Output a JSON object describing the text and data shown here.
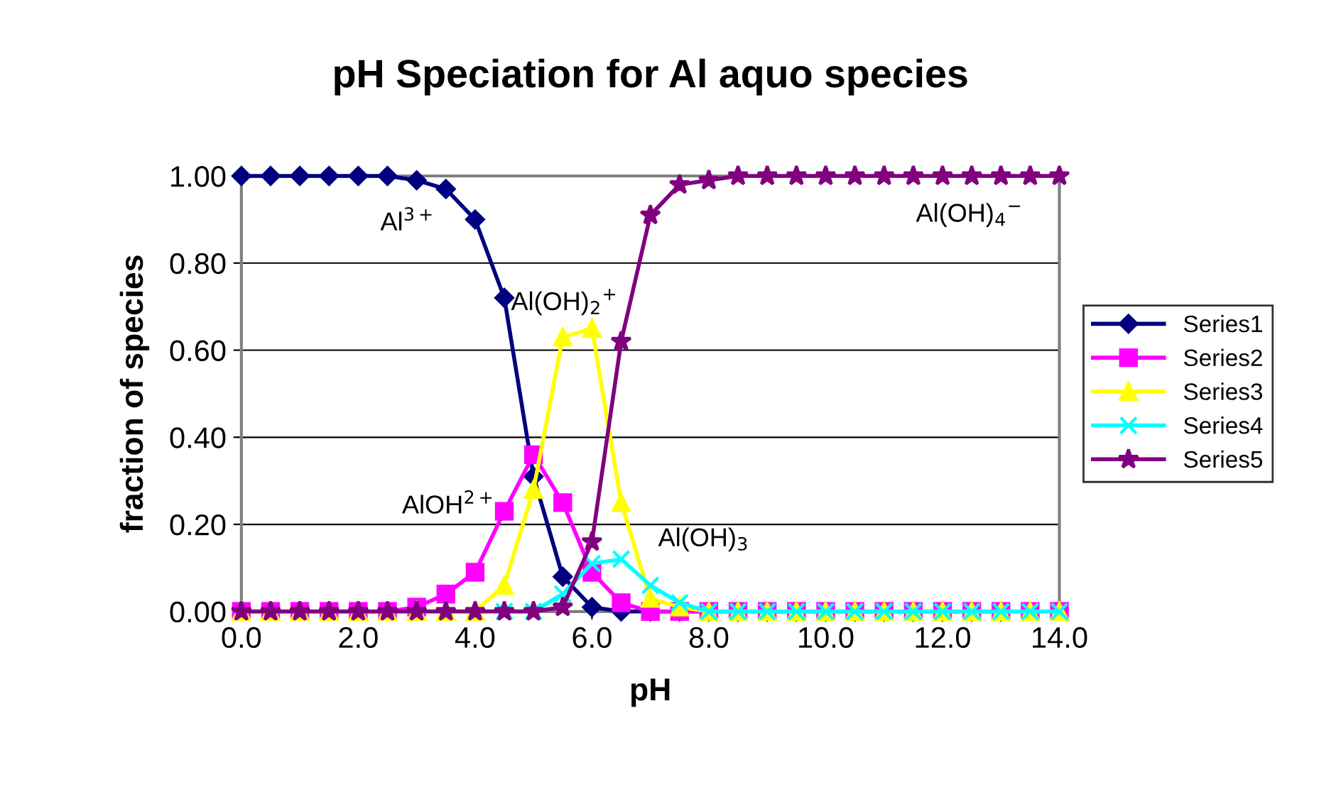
{
  "chart_data": {
    "type": "line",
    "title": "pH Speciation for Al aquo species",
    "xlabel": "pH",
    "ylabel": "fraction of species",
    "x": [
      0.0,
      0.5,
      1.0,
      1.5,
      2.0,
      2.5,
      3.0,
      3.5,
      4.0,
      4.5,
      5.0,
      5.5,
      6.0,
      6.5,
      7.0,
      7.5,
      8.0,
      8.5,
      9.0,
      9.5,
      10.0,
      10.5,
      11.0,
      11.5,
      12.0,
      12.5,
      13.0,
      13.5,
      14.0
    ],
    "series": [
      {
        "name": "Series1",
        "color": "#000080",
        "marker": "diamond",
        "values": [
          1.0,
          1.0,
          1.0,
          1.0,
          1.0,
          1.0,
          0.99,
          0.97,
          0.9,
          0.72,
          0.31,
          0.08,
          0.01,
          0,
          0,
          0,
          0,
          0,
          0,
          0,
          0,
          0,
          0,
          0,
          0,
          0,
          0,
          null,
          null
        ]
      },
      {
        "name": "Series2",
        "color": "#ff00ff",
        "marker": "square",
        "values": [
          0,
          0,
          0,
          0,
          0,
          0,
          0.01,
          0.04,
          0.09,
          0.23,
          0.36,
          0.25,
          0.09,
          0.02,
          0,
          0,
          0,
          0,
          0,
          0,
          0,
          0,
          0,
          0,
          0,
          0,
          0,
          0,
          0
        ]
      },
      {
        "name": "Series3",
        "color": "#ffff00",
        "marker": "triangle",
        "values": [
          0,
          0,
          0,
          0,
          0,
          0,
          0,
          0,
          0,
          0.06,
          0.28,
          0.63,
          0.65,
          0.25,
          0.03,
          0.01,
          0,
          0,
          0,
          0,
          0,
          0,
          0,
          0,
          0,
          0,
          0,
          0,
          0
        ]
      },
      {
        "name": "Series4",
        "color": "#00ffff",
        "marker": "cross",
        "values": [
          null,
          null,
          null,
          null,
          null,
          null,
          null,
          null,
          null,
          0,
          0,
          0.04,
          0.11,
          0.12,
          0.06,
          0.02,
          0,
          0,
          0,
          0,
          0,
          0,
          0,
          0,
          0,
          0,
          0,
          0,
          0
        ]
      },
      {
        "name": "Series5",
        "color": "#800080",
        "marker": "star",
        "values": [
          0,
          0,
          0,
          0,
          0,
          0,
          0,
          0,
          0,
          0,
          0,
          0.01,
          0.16,
          0.62,
          0.91,
          0.98,
          0.99,
          1.0,
          1.0,
          1.0,
          1.0,
          1.0,
          1.0,
          1.0,
          1.0,
          1.0,
          1.0,
          1.0,
          1.0
        ]
      }
    ],
    "xlim": [
      0,
      14
    ],
    "xticks": [
      {
        "value": 0,
        "label": "0.0"
      },
      {
        "value": 2,
        "label": "2.0"
      },
      {
        "value": 4,
        "label": "4.0"
      },
      {
        "value": 6,
        "label": "6.0"
      },
      {
        "value": 8,
        "label": "8.0"
      },
      {
        "value": 10,
        "label": "10.0"
      },
      {
        "value": 12,
        "label": "12.0"
      },
      {
        "value": 14,
        "label": "14.0"
      }
    ],
    "ylim": [
      0,
      1
    ],
    "yticks": [
      {
        "value": 0,
        "label": "0.00"
      },
      {
        "value": 0.2,
        "label": "0.20"
      },
      {
        "value": 0.4,
        "label": "0.40"
      },
      {
        "value": 0.6,
        "label": "0.60"
      },
      {
        "value": 0.8,
        "label": "0.80"
      },
      {
        "value": 1,
        "label": "1.00"
      }
    ],
    "grid": "y",
    "legend": "right",
    "line_style": "solid",
    "annotations": [
      "Al$^{3+}$",
      "Al(OH)$_{2}$$^{+}$",
      "AlOH$^{2+}$",
      "Al(OH)$_{3}$",
      "Al(OH)$_{4}$$^{−}$"
    ]
  }
}
